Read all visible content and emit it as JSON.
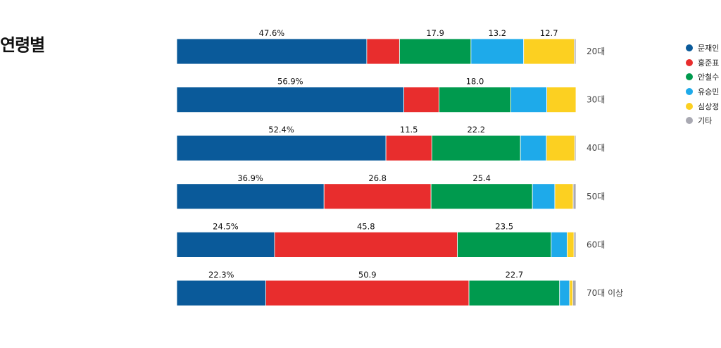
{
  "chart_data": {
    "type": "bar",
    "orientation": "horizontal",
    "stacked": true,
    "normalized": true,
    "title": "연령별",
    "categories": [
      "20대",
      "30대",
      "40대",
      "50대",
      "60대",
      "70대 이상"
    ],
    "series": [
      {
        "name": "문재인",
        "color": "#0a5a9a",
        "values": [
          47.6,
          56.9,
          52.4,
          36.9,
          24.5,
          22.3
        ],
        "labels": [
          "47.6%",
          "56.9%",
          "52.4%",
          "36.9%",
          "24.5%",
          "22.3%"
        ]
      },
      {
        "name": "홍준표",
        "color": "#e82d2d",
        "values": [
          8.2,
          8.8,
          11.5,
          26.8,
          45.8,
          50.9
        ],
        "labels": [
          "",
          "",
          "11.5",
          "26.8",
          "45.8",
          "50.9"
        ]
      },
      {
        "name": "안철수",
        "color": "#009a4e",
        "values": [
          17.9,
          18.0,
          22.2,
          25.4,
          23.5,
          22.7
        ],
        "labels": [
          "17.9",
          "18.0",
          "22.2",
          "25.4",
          "23.5",
          "22.7"
        ]
      },
      {
        "name": "유승민",
        "color": "#1eaaea",
        "values": [
          13.2,
          9.0,
          6.5,
          5.6,
          4.0,
          2.5
        ],
        "labels": [
          "13.2",
          "",
          "",
          "",
          "",
          ""
        ]
      },
      {
        "name": "심상정",
        "color": "#fcd021",
        "values": [
          12.7,
          7.3,
          7.1,
          4.6,
          1.7,
          0.8
        ],
        "labels": [
          "12.7",
          "",
          "",
          "",
          "",
          ""
        ]
      },
      {
        "name": "기타",
        "color": "#a9a9b2",
        "values": [
          0.4,
          0.0,
          0.3,
          0.7,
          0.5,
          0.8
        ],
        "labels": [
          "",
          "",
          "",
          "",
          "",
          ""
        ]
      }
    ],
    "legend_position": "right",
    "grid": false
  }
}
